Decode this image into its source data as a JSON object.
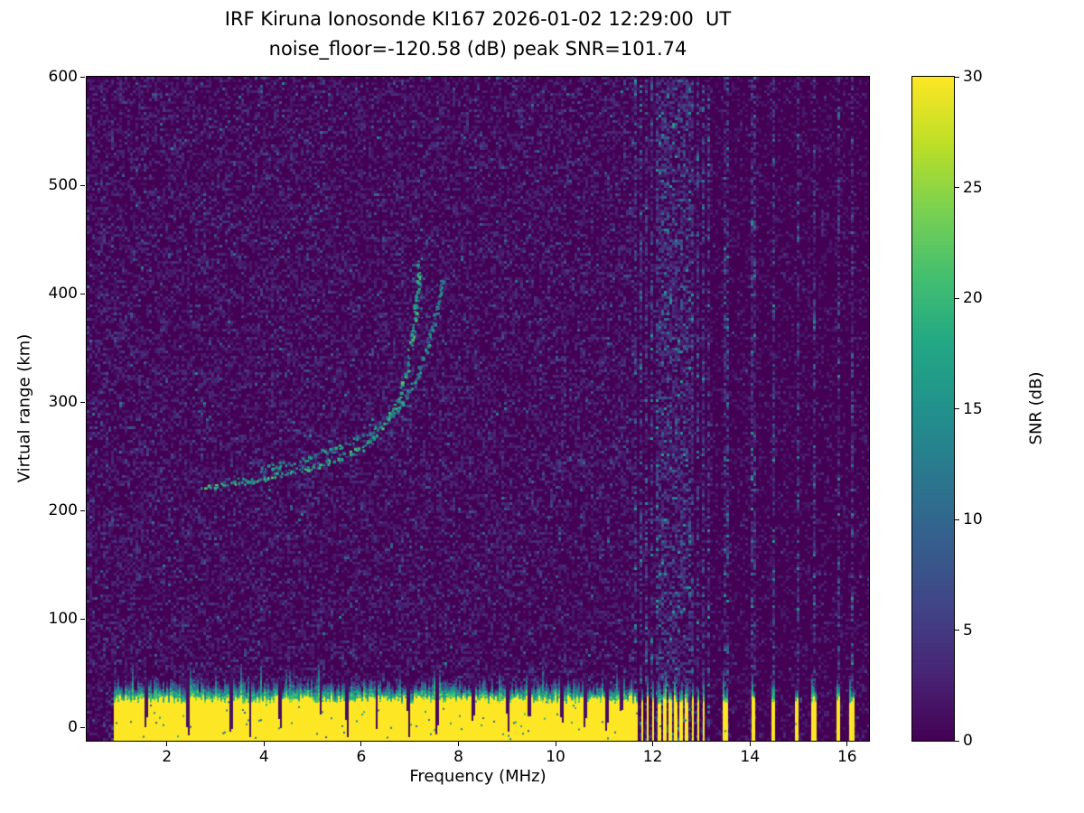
{
  "chart_data": {
    "type": "heatmap",
    "title": "IRF Kiruna Ionosonde KI167 2026-01-02 12:29:00  UT",
    "subtitle": "noise_floor=-120.58 (dB) peak SNR=101.74",
    "xlabel": "Frequency (MHz)",
    "ylabel": "Virtual range (km)",
    "xlim": [
      0.35,
      16.45
    ],
    "ylim": [
      -12.5,
      600
    ],
    "x_ticks": [
      2,
      4,
      6,
      8,
      10,
      12,
      14,
      16
    ],
    "y_ticks": [
      0,
      100,
      200,
      300,
      400,
      500,
      600
    ],
    "grid": false,
    "legend": "none",
    "colorbar": {
      "label": "SNR (dB)",
      "min": 0,
      "max": 30,
      "ticks": [
        0,
        5,
        10,
        15,
        20,
        25,
        30
      ],
      "colormap": "viridis",
      "position": "right"
    },
    "colormap_stops": [
      [
        0,
        "#440154"
      ],
      [
        0.1,
        "#482475"
      ],
      [
        0.2,
        "#414487"
      ],
      [
        0.3,
        "#355f8d"
      ],
      [
        0.4,
        "#2a788e"
      ],
      [
        0.5,
        "#21918c"
      ],
      [
        0.6,
        "#22a884"
      ],
      [
        0.7,
        "#44bf70"
      ],
      [
        0.8,
        "#7ad151"
      ],
      [
        0.9,
        "#bddf26"
      ],
      [
        1,
        "#fde725"
      ]
    ],
    "background_snr_db": 0,
    "noise": {
      "mean_db": 1.6,
      "mean_db_above_11_6mhz": 0.9,
      "stripe_mean_db": 3.2
    },
    "ground_clutter": {
      "f_start": 0.9,
      "f_end": 16.42,
      "core_top_km": 25,
      "fringe_top_km": 40,
      "snr_db": 30,
      "notches_mhz": [
        1.55,
        2.4,
        3.3,
        3.7,
        4.3,
        5.15,
        5.7,
        6.3,
        6.95,
        7.55,
        8.3,
        9.0,
        9.45,
        10.1,
        10.6,
        11.05,
        11.35
      ]
    },
    "interference": {
      "comb": {
        "start_mhz": 11.62,
        "end_mhz": 13.12,
        "period_mhz": 0.115,
        "duty": 0.5
      },
      "stripes_mhz": [
        13.48,
        14.05,
        14.45,
        14.95,
        15.3,
        15.8,
        16.08
      ]
    },
    "echo_traces": [
      {
        "name": "ionospheric-echo-trace-1",
        "snr_db": 16,
        "points_mhz_km": [
          [
            2.7,
            221
          ],
          [
            3.3,
            227
          ],
          [
            4.1,
            231
          ],
          [
            4.9,
            240
          ],
          [
            5.5,
            249
          ],
          [
            6.0,
            258
          ],
          [
            6.45,
            279
          ],
          [
            6.75,
            304
          ],
          [
            6.95,
            337
          ],
          [
            7.07,
            371
          ],
          [
            7.15,
            412
          ],
          [
            7.19,
            433
          ]
        ]
      },
      {
        "name": "ionospheric-echo-trace-2",
        "snr_db": 13,
        "points_mhz_km": [
          [
            3.9,
            238
          ],
          [
            4.8,
            248
          ],
          [
            5.6,
            260
          ],
          [
            6.3,
            276
          ],
          [
            6.8,
            296
          ],
          [
            7.1,
            320
          ],
          [
            7.35,
            352
          ],
          [
            7.55,
            388
          ],
          [
            7.65,
            413
          ]
        ]
      }
    ]
  }
}
